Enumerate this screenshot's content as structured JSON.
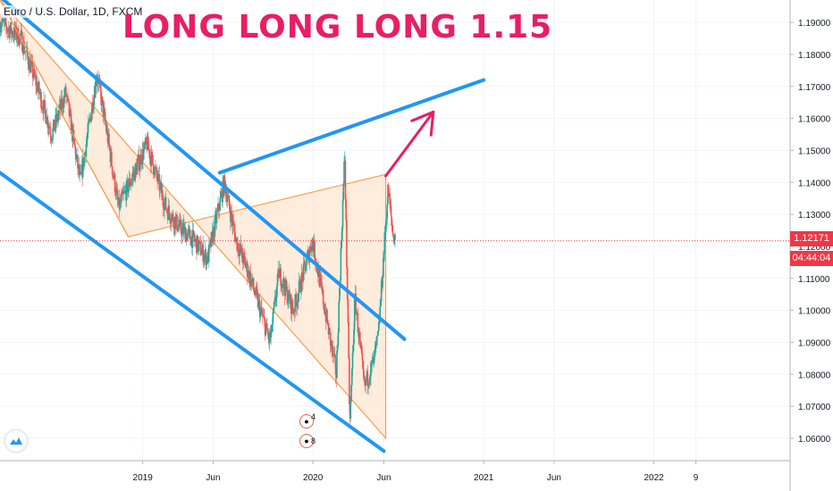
{
  "header": {
    "symbol": "Euro / U.S. Dollar, 1D, FXCM",
    "headline": "LONG LONG LONG 1.15"
  },
  "price_tag": {
    "price": "1.12171",
    "countdown": "04:44:04"
  },
  "events": [
    {
      "icon": "flag-eu-icon",
      "count": "4"
    },
    {
      "icon": "flag-us-icon",
      "count": "8"
    }
  ],
  "colors": {
    "background": "#ffffff",
    "candle_green": "#26a69a",
    "candle_red": "#ef5350",
    "channel_line": "#2196f3",
    "triangle_fill": "#fde6d0",
    "triangle_stroke": "#f6a04d",
    "arrow": "#e91e63",
    "price_line": "#f23645",
    "axis_text": "#131722"
  },
  "chart_data": {
    "type": "candlestick",
    "title": "",
    "yaxis": {
      "ticks": [
        "1.19000",
        "1.18000",
        "1.17000",
        "1.16000",
        "1.15000",
        "1.14000",
        "1.13000",
        "1.12000",
        "1.11000",
        "1.10000",
        "1.09000",
        "1.08000",
        "1.07000",
        "1.06000"
      ],
      "range": [
        1.053,
        1.197
      ],
      "position": "right"
    },
    "xaxis": {
      "ticks": [
        "2019",
        "Jun",
        "2020",
        "Jun",
        "2021",
        "Jun",
        "2022",
        "9"
      ],
      "range": [
        "2018-03-01",
        "2022-10-20"
      ]
    },
    "current_price": 1.12171,
    "price_path": [
      [
        "2018-03-01",
        1.19
      ],
      [
        "2018-04-15",
        1.185
      ],
      [
        "2018-05-20",
        1.17
      ],
      [
        "2018-06-20",
        1.155
      ],
      [
        "2018-07-20",
        1.168
      ],
      [
        "2018-08-20",
        1.14
      ],
      [
        "2018-09-25",
        1.174
      ],
      [
        "2018-10-20",
        1.152
      ],
      [
        "2018-11-10",
        1.132
      ],
      [
        "2018-12-20",
        1.145
      ],
      [
        "2019-01-10",
        1.152
      ],
      [
        "2019-02-20",
        1.132
      ],
      [
        "2019-03-20",
        1.126
      ],
      [
        "2019-04-20",
        1.122
      ],
      [
        "2019-05-20",
        1.116
      ],
      [
        "2019-06-25",
        1.14
      ],
      [
        "2019-07-20",
        1.122
      ],
      [
        "2019-08-20",
        1.11
      ],
      [
        "2019-10-01",
        1.09
      ],
      [
        "2019-10-20",
        1.112
      ],
      [
        "2019-11-20",
        1.1
      ],
      [
        "2019-12-31",
        1.122
      ],
      [
        "2020-02-20",
        1.08
      ],
      [
        "2020-03-09",
        1.149
      ],
      [
        "2020-03-20",
        1.064
      ],
      [
        "2020-03-31",
        1.104
      ],
      [
        "2020-04-20",
        1.076
      ],
      [
        "2020-05-10",
        1.084
      ],
      [
        "2020-05-20",
        1.092
      ],
      [
        "2020-06-10",
        1.138
      ],
      [
        "2020-06-20",
        1.124
      ],
      [
        "2020-06-26",
        1.122
      ]
    ],
    "drawings": [
      {
        "type": "trendline",
        "name": "upper-channel",
        "points": [
          [
            "2018-03-01",
            1.198
          ],
          [
            "2020-07-15",
            1.091
          ]
        ]
      },
      {
        "type": "trendline",
        "name": "lower-channel",
        "points": [
          [
            "2018-03-01",
            1.143
          ],
          [
            "2020-06-01",
            1.056
          ]
        ]
      },
      {
        "type": "trendline",
        "name": "resistance",
        "points": [
          [
            "2019-06-15",
            1.143
          ],
          [
            "2021-01-01",
            1.172
          ]
        ]
      },
      {
        "type": "triangle",
        "name": "wedge",
        "points": [
          [
            "2018-12-01",
            1.123
          ],
          [
            "2020-06-05",
            1.1425
          ],
          [
            "2020-06-05",
            1.06
          ]
        ]
      },
      {
        "type": "trendline",
        "name": "wedge-upper-left",
        "points": [
          [
            "2018-03-01",
            1.197
          ],
          [
            "2018-12-01",
            1.123
          ]
        ]
      },
      {
        "type": "arrow",
        "name": "projection",
        "points": [
          [
            "2020-06-05",
            1.142
          ],
          [
            "2020-09-15",
            1.162
          ]
        ]
      }
    ]
  }
}
